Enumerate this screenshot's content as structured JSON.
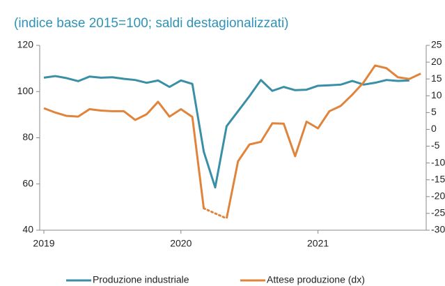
{
  "chart_data": {
    "type": "line",
    "title": "(indice base 2015=100; saldi destagionalizzati)",
    "categories": [
      "2019",
      null,
      null,
      null,
      null,
      null,
      null,
      null,
      null,
      null,
      null,
      null,
      "2020",
      null,
      null,
      null,
      null,
      null,
      null,
      null,
      null,
      null,
      null,
      null,
      "2021",
      null,
      null,
      null,
      null,
      null,
      null,
      null,
      null,
      null
    ],
    "series": [
      {
        "name": "Produzione industriale",
        "color": "#3a8fa6",
        "values": [
          106,
          106.7,
          105.8,
          104.5,
          106.5,
          106,
          106.2,
          105.5,
          105,
          103.8,
          104.8,
          102,
          104.8,
          103.3,
          74,
          58.5,
          85,
          91.5,
          98,
          105,
          100.3,
          102,
          100.6,
          100.8,
          102.5,
          102.7,
          103,
          104.6,
          103,
          103.8,
          105,
          104.6,
          104.8,
          null
        ]
      },
      {
        "name": "Attese produzione (dx)",
        "color": "#e0843c",
        "axis": "y2",
        "gap_line": "dotted",
        "values": [
          6.3,
          5,
          4,
          3.8,
          6,
          5.6,
          5.4,
          5.4,
          2.8,
          4.5,
          8.2,
          3.8,
          6,
          3.7,
          -23.5,
          null,
          -26.5,
          -9.5,
          -4.5,
          -3.7,
          1.8,
          1.7,
          -8,
          2.3,
          0.3,
          5.4,
          7,
          10.3,
          14,
          19,
          18.2,
          15.5,
          15,
          16.6
        ]
      }
    ],
    "ylim": [
      40,
      120
    ],
    "yticks": [
      40,
      60,
      80,
      100,
      120
    ],
    "y2lim": [
      -30,
      25
    ],
    "y2ticks": [
      -30,
      -25,
      -20,
      -15,
      -10,
      -5,
      0,
      5,
      10,
      15,
      20,
      25
    ]
  }
}
